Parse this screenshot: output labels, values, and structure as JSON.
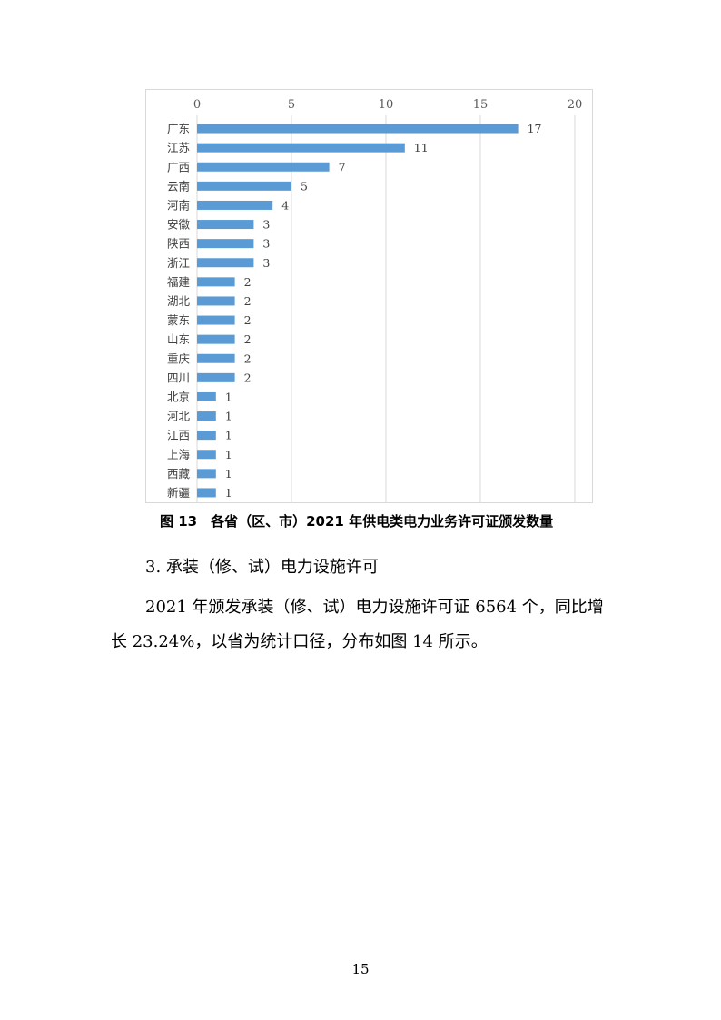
{
  "chart_data": {
    "type": "bar",
    "orientation": "horizontal",
    "categories": [
      "广东",
      "江苏",
      "广西",
      "云南",
      "河南",
      "安徽",
      "陕西",
      "浙江",
      "福建",
      "湖北",
      "蒙东",
      "山东",
      "重庆",
      "四川",
      "北京",
      "河北",
      "江西",
      "上海",
      "西藏",
      "新疆"
    ],
    "values": [
      17,
      11,
      7,
      5,
      4,
      3,
      3,
      3,
      2,
      2,
      2,
      2,
      2,
      2,
      1,
      1,
      1,
      1,
      1,
      1
    ],
    "xlim": [
      0,
      20
    ],
    "xticks": [
      0,
      5,
      10,
      15,
      20
    ],
    "axis_position": "top",
    "grid": true,
    "bar_color": "#5b9bd5",
    "data_labels": true
  },
  "caption": "图 13　各省（区、市）2021 年供电类电力业务许可证颁发数量",
  "section_heading": "3. 承装（修、试）电力设施许可",
  "paragraph": "2021 年颁发承装（修、试）电力设施许可证 6564 个，同比增长 23.24%，以省为统计口径，分布如图 14 所示。",
  "page_number": "15"
}
